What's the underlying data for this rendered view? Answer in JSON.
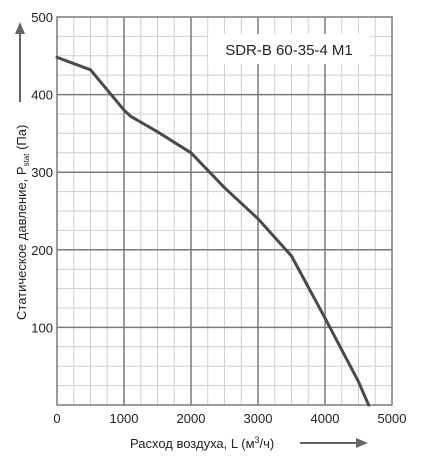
{
  "chart_data": {
    "type": "line",
    "title": "SDR-B 60-35-4 M1",
    "xlabel_main": "Расход воздуха, L (м",
    "xlabel_sup": "3",
    "xlabel_end": "/ч)",
    "ylabel_main": "Статическое давление, P",
    "ylabel_sub": "stat",
    "ylabel_end": " (Па)",
    "xlim": [
      0,
      5000
    ],
    "ylim": [
      0,
      500
    ],
    "x_ticks": [
      "0",
      "1000",
      "2000",
      "3000",
      "4000",
      "5000"
    ],
    "y_ticks": [
      "100",
      "200",
      "300",
      "400",
      "500"
    ],
    "grid": true,
    "series": [
      {
        "x": [
          0,
          500,
          1000,
          1100,
          1500,
          2000,
          2500,
          3000,
          3500,
          4000,
          4500,
          4650
        ],
        "y": [
          448,
          432,
          380,
          372,
          352,
          325,
          280,
          240,
          192,
          112,
          30,
          0
        ]
      }
    ],
    "colors": {
      "line": "#4a4a4a",
      "grid_major": "#7a7a7a",
      "grid_minor": "#cfcfcf",
      "arrow": "#666666"
    }
  }
}
